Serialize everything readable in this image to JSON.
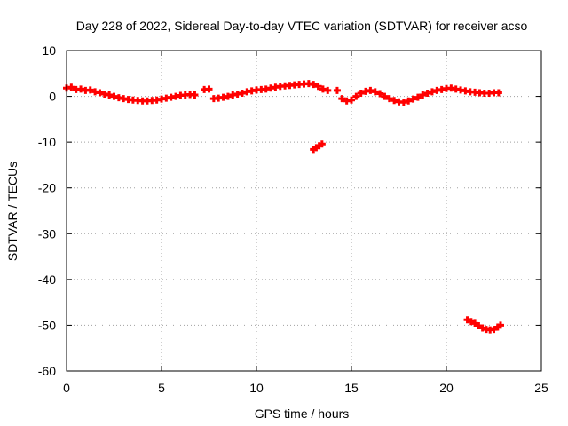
{
  "chart_data": {
    "type": "scatter",
    "title": "Day 228 of 2022, Sidereal Day-to-day VTEC variation (SDTVAR) for receiver acso",
    "xlabel": "GPS time / hours",
    "ylabel": "SDTVAR / TECUs",
    "xlim": [
      0,
      25
    ],
    "ylim": [
      -60,
      10
    ],
    "xticks": [
      0,
      5,
      10,
      15,
      20,
      25
    ],
    "xtick_labels": [
      "0",
      "5",
      "10",
      "15",
      "20",
      "25"
    ],
    "yticks": [
      10,
      0,
      -10,
      -20,
      -30,
      -40,
      -50,
      -60
    ],
    "ytick_labels": [
      "10",
      "0",
      "-10",
      "-20",
      "-30",
      "-40",
      "-50",
      "-60"
    ],
    "grid": true,
    "marker": "+",
    "series": [
      {
        "name": "SDTVAR",
        "color": "#ff0000",
        "points": [
          [
            0.0,
            1.8
          ],
          [
            0.25,
            2.0
          ],
          [
            0.5,
            1.5
          ],
          [
            0.75,
            1.6
          ],
          [
            1.0,
            1.3
          ],
          [
            1.25,
            1.4
          ],
          [
            1.5,
            1.0
          ],
          [
            1.75,
            0.8
          ],
          [
            2.0,
            0.5
          ],
          [
            2.25,
            0.3
          ],
          [
            2.5,
            0.0
          ],
          [
            2.75,
            -0.3
          ],
          [
            3.0,
            -0.5
          ],
          [
            3.25,
            -0.7
          ],
          [
            3.5,
            -0.8
          ],
          [
            3.75,
            -0.9
          ],
          [
            4.0,
            -1.0
          ],
          [
            4.25,
            -1.0
          ],
          [
            4.5,
            -0.9
          ],
          [
            4.75,
            -0.8
          ],
          [
            5.0,
            -0.6
          ],
          [
            5.25,
            -0.4
          ],
          [
            5.5,
            -0.2
          ],
          [
            5.75,
            0.0
          ],
          [
            6.0,
            0.2
          ],
          [
            6.25,
            0.3
          ],
          [
            6.5,
            0.4
          ],
          [
            6.75,
            0.3
          ],
          [
            7.25,
            1.5
          ],
          [
            7.5,
            1.6
          ],
          [
            7.75,
            -0.5
          ],
          [
            8.0,
            -0.4
          ],
          [
            8.25,
            -0.2
          ],
          [
            8.5,
            0.0
          ],
          [
            8.75,
            0.3
          ],
          [
            9.0,
            0.5
          ],
          [
            9.25,
            0.7
          ],
          [
            9.5,
            1.0
          ],
          [
            9.75,
            1.2
          ],
          [
            10.0,
            1.4
          ],
          [
            10.25,
            1.5
          ],
          [
            10.5,
            1.6
          ],
          [
            10.75,
            1.8
          ],
          [
            11.0,
            2.0
          ],
          [
            11.25,
            2.2
          ],
          [
            11.5,
            2.3
          ],
          [
            11.75,
            2.4
          ],
          [
            12.0,
            2.5
          ],
          [
            12.25,
            2.6
          ],
          [
            12.5,
            2.7
          ],
          [
            12.75,
            2.8
          ],
          [
            13.0,
            2.6
          ],
          [
            13.25,
            2.2
          ],
          [
            13.5,
            1.6
          ],
          [
            13.75,
            1.3
          ],
          [
            14.25,
            1.3
          ],
          [
            14.5,
            -0.5
          ],
          [
            14.75,
            -1.0
          ],
          [
            15.0,
            -0.8
          ],
          [
            15.25,
            0.0
          ],
          [
            15.5,
            0.7
          ],
          [
            15.75,
            1.1
          ],
          [
            16.0,
            1.3
          ],
          [
            16.25,
            1.0
          ],
          [
            16.5,
            0.6
          ],
          [
            16.75,
            0.0
          ],
          [
            17.0,
            -0.5
          ],
          [
            17.25,
            -0.9
          ],
          [
            17.5,
            -1.2
          ],
          [
            17.75,
            -1.3
          ],
          [
            18.0,
            -1.0
          ],
          [
            18.25,
            -0.6
          ],
          [
            18.5,
            -0.2
          ],
          [
            18.75,
            0.3
          ],
          [
            19.0,
            0.7
          ],
          [
            19.25,
            1.0
          ],
          [
            19.5,
            1.3
          ],
          [
            19.75,
            1.5
          ],
          [
            20.0,
            1.7
          ],
          [
            20.25,
            1.8
          ],
          [
            20.5,
            1.6
          ],
          [
            20.75,
            1.4
          ],
          [
            21.0,
            1.2
          ],
          [
            21.25,
            1.0
          ],
          [
            21.5,
            0.9
          ],
          [
            21.75,
            0.8
          ],
          [
            22.0,
            0.7
          ],
          [
            22.25,
            0.7
          ],
          [
            22.5,
            0.8
          ],
          [
            22.75,
            0.8
          ],
          [
            13.0,
            -11.6
          ],
          [
            13.15,
            -11.2
          ],
          [
            13.3,
            -10.8
          ],
          [
            13.45,
            -10.4
          ],
          [
            21.1,
            -48.8
          ],
          [
            21.3,
            -49.2
          ],
          [
            21.5,
            -49.6
          ],
          [
            21.7,
            -50.1
          ],
          [
            21.9,
            -50.6
          ],
          [
            22.1,
            -50.9
          ],
          [
            22.3,
            -51.0
          ],
          [
            22.5,
            -50.9
          ],
          [
            22.7,
            -50.4
          ],
          [
            22.85,
            -50.0
          ]
        ]
      }
    ]
  }
}
